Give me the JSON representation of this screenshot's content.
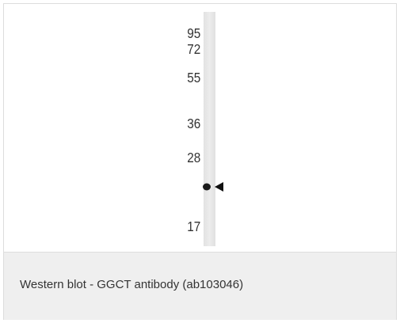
{
  "blot": {
    "markers": [
      "95",
      "72",
      "55",
      "36",
      "28",
      "17"
    ]
  },
  "caption": "Western blot - GGCT antibody (ab103046)"
}
